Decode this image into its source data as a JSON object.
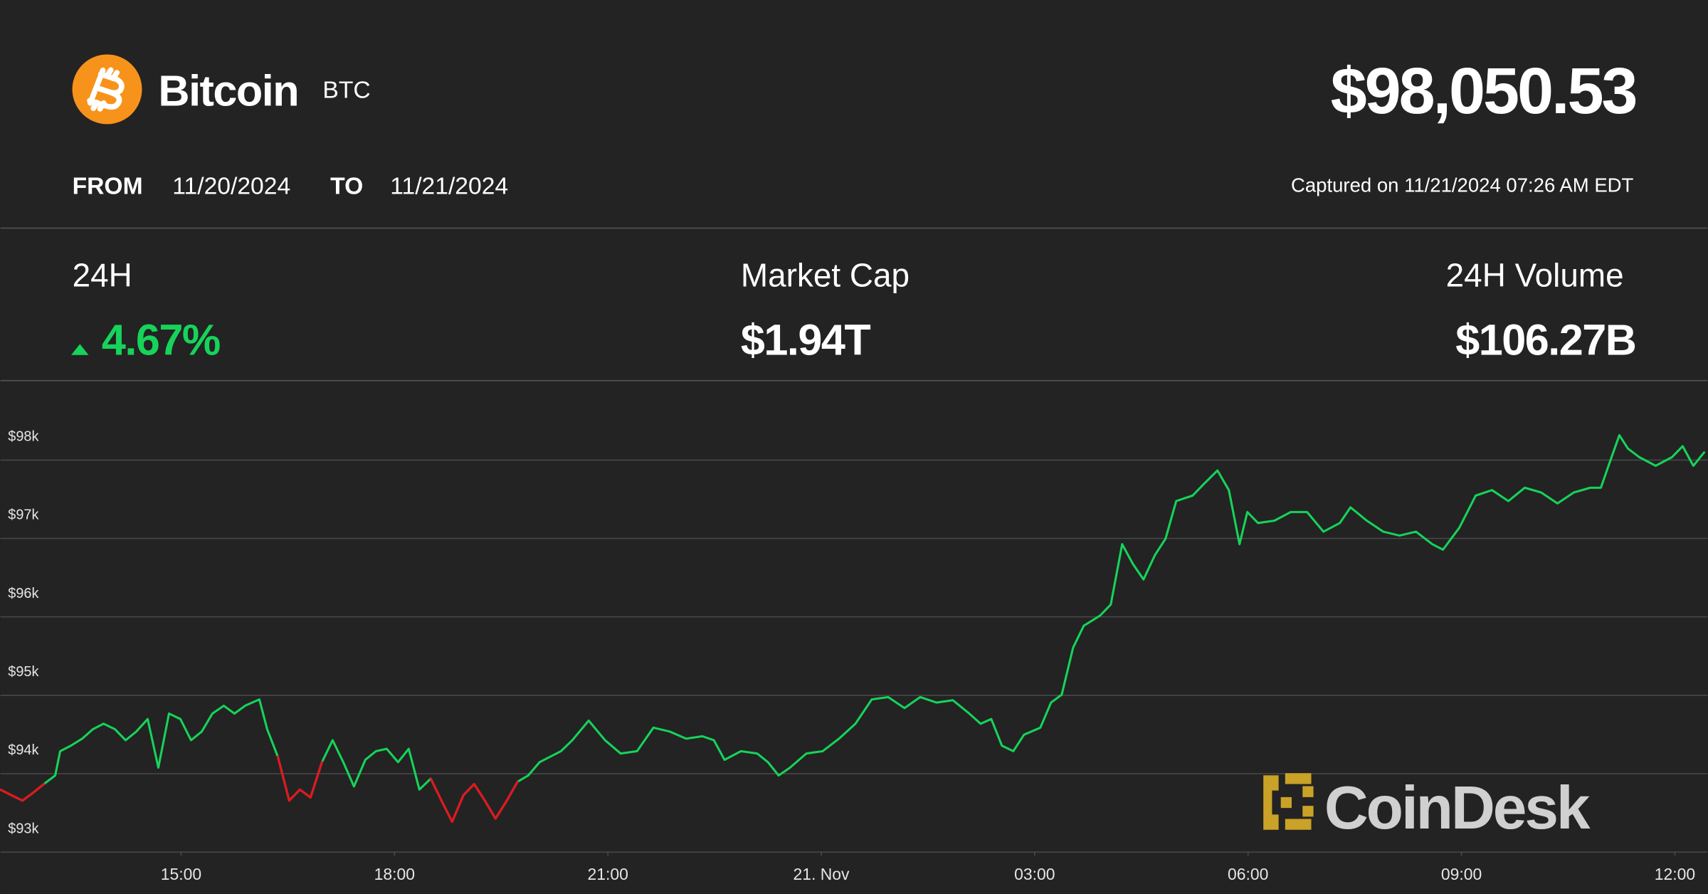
{
  "header": {
    "name": "Bitcoin",
    "symbol": "BTC",
    "price": "$98,050.53",
    "from_label": "FROM",
    "from_date": "11/20/2024",
    "to_label": "TO",
    "to_date": "11/21/2024",
    "captured": "Captured on 11/21/2024 07:26 AM EDT"
  },
  "stats": [
    {
      "label": "24H",
      "value": "4.67%"
    },
    {
      "label": "Market Cap",
      "value": "$1.94T"
    },
    {
      "label": "24H Volume",
      "value": "$106.27B"
    }
  ],
  "brand": "CoinDesk",
  "chart_data": {
    "type": "line",
    "color": "#16d35a",
    "down_color": "#e8141e",
    "x": [
      12.46,
      12.61,
      12.77,
      12.92,
      13.07,
      13.23,
      13.3,
      13.45,
      13.61,
      13.76,
      13.91,
      14.07,
      14.22,
      14.37,
      14.53,
      14.68,
      14.83,
      14.99,
      15.14,
      15.29,
      15.44,
      15.6,
      15.75,
      15.9,
      16.1,
      16.21,
      16.36,
      16.52,
      16.67,
      16.82,
      16.98,
      17.13,
      17.28,
      17.43,
      17.59,
      17.74,
      17.89,
      18.05,
      18.2,
      18.35,
      18.51,
      18.66,
      18.81,
      18.97,
      19.12,
      19.27,
      19.42,
      19.58,
      19.73,
      19.88,
      20.04,
      20.19,
      20.34,
      20.5,
      20.73,
      20.96,
      21.18,
      21.41,
      21.64,
      21.87,
      22.1,
      22.33,
      22.49,
      22.64,
      22.87,
      23.1,
      23.25,
      23.4,
      23.56,
      23.79,
      24.02,
      24.25,
      24.48,
      24.71,
      24.94,
      25.17,
      25.39,
      25.62,
      25.85,
      26.08,
      26.24,
      26.39,
      26.54,
      26.7,
      26.85,
      27.08,
      27.23,
      27.38,
      27.54,
      27.69,
      27.92,
      28.07,
      28.23,
      28.38,
      28.53,
      28.69,
      28.84,
      28.99,
      29.22,
      29.37,
      29.57,
      29.73,
      29.88,
      29.99,
      30.14,
      30.37,
      30.6,
      30.83,
      31.06,
      31.29,
      31.44,
      31.67,
      31.9,
      32.13,
      32.36,
      32.59,
      32.74,
      32.97,
      33.2,
      33.43,
      33.66,
      33.89,
      34.12,
      34.35,
      34.58,
      34.81,
      34.96,
      35.11,
      35.22,
      35.34,
      35.5,
      35.73,
      35.96,
      36.11,
      36.26,
      36.42
    ],
    "values": [
      93790,
      93720,
      93650,
      93750,
      93860,
      93970,
      94280,
      94350,
      94440,
      94560,
      94630,
      94560,
      94420,
      94530,
      94690,
      94070,
      94760,
      94690,
      94420,
      94530,
      94760,
      94860,
      94760,
      94860,
      94940,
      94560,
      94210,
      93650,
      93790,
      93690,
      94140,
      94420,
      94140,
      93830,
      94170,
      94280,
      94310,
      94140,
      94310,
      93790,
      93930,
      93650,
      93380,
      93720,
      93860,
      93650,
      93420,
      93650,
      93890,
      93970,
      94140,
      94210,
      94280,
      94420,
      94670,
      94420,
      94250,
      94280,
      94580,
      94530,
      94440,
      94470,
      94420,
      94170,
      94280,
      94250,
      94140,
      93970,
      94070,
      94250,
      94280,
      94440,
      94630,
      94940,
      94970,
      94830,
      94970,
      94900,
      94930,
      94760,
      94630,
      94690,
      94350,
      94280,
      94490,
      94580,
      94900,
      95000,
      95600,
      95880,
      96010,
      96150,
      96920,
      96670,
      96470,
      96780,
      96990,
      97470,
      97540,
      97680,
      97860,
      97610,
      96920,
      97330,
      97190,
      97220,
      97330,
      97330,
      97080,
      97190,
      97390,
      97220,
      97080,
      97030,
      97080,
      96920,
      96850,
      97130,
      97540,
      97610,
      97470,
      97640,
      97580,
      97440,
      97580,
      97640,
      97640,
      98030,
      98310,
      98140,
      98030,
      97920,
      98030,
      98170,
      97920,
      98100
    ],
    "xlim": [
      12.46,
      36.46
    ],
    "xticks": [
      {
        "value": 15,
        "label": "15:00"
      },
      {
        "value": 18,
        "label": "18:00"
      },
      {
        "value": 21,
        "label": "21:00"
      },
      {
        "value": 24,
        "label": "21. Nov"
      },
      {
        "value": 27,
        "label": "03:00"
      },
      {
        "value": 30,
        "label": "06:00"
      },
      {
        "value": 33,
        "label": "09:00"
      },
      {
        "value": 36,
        "label": "12:00"
      }
    ],
    "ylim": [
      93000,
      99000
    ],
    "yticks": [
      {
        "value": 93000,
        "label": "$93k"
      },
      {
        "value": 94000,
        "label": "$94k"
      },
      {
        "value": 95000,
        "label": "$95k"
      },
      {
        "value": 96000,
        "label": "$96k"
      },
      {
        "value": 97000,
        "label": "$97k"
      },
      {
        "value": 98000,
        "label": "$98k"
      }
    ],
    "grid": true
  }
}
